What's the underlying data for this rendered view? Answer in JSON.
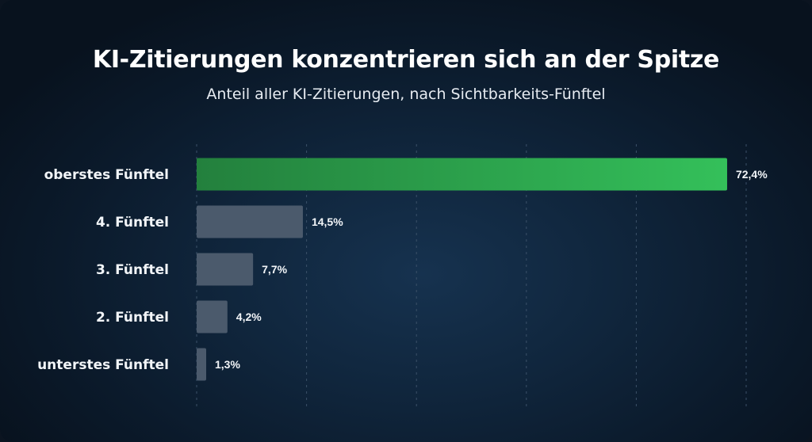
{
  "chart_data": {
    "type": "bar",
    "orientation": "horizontal",
    "title": "KI-Zitierungen konzentrieren sich an der Spitze",
    "subtitle": "Anteil aller KI-Zitierungen, nach Sichtbarkeits-Fünftel",
    "categories": [
      "oberstes Fünftel",
      "4. Fünftel",
      "3. Fünftel",
      "2. Fünftel",
      "unterstes Fünftel"
    ],
    "values": [
      72.4,
      14.5,
      7.7,
      4.2,
      1.3
    ],
    "value_labels": [
      "72,4%",
      "14,5%",
      "7,7%",
      "4,2%",
      "1,3%"
    ],
    "xlim": [
      0,
      75
    ],
    "grid": true,
    "colors": {
      "highlight_start": "#23803d",
      "highlight_end": "#34c05a",
      "default_bar": "#4b5a6c",
      "text": "#f2f5f8"
    }
  }
}
